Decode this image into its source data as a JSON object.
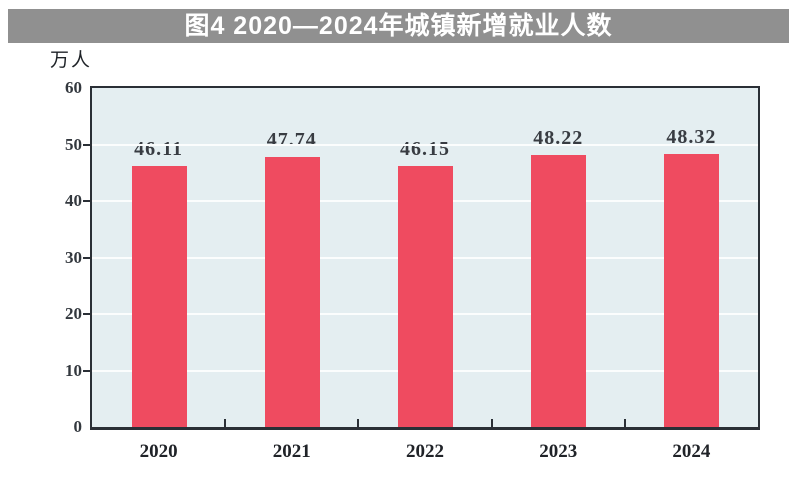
{
  "banner": {
    "title": "图4 2020—2024年城镇新增就业人数"
  },
  "chart_data": {
    "type": "bar",
    "title": "图4 2020—2024年城镇新增就业人数",
    "unit_label": "万人",
    "categories": [
      "2020",
      "2021",
      "2022",
      "2023",
      "2024"
    ],
    "values": [
      46.11,
      47.74,
      46.15,
      48.22,
      48.32
    ],
    "value_labels": [
      "46.11",
      "47.74",
      "46.15",
      "48.22",
      "48.32"
    ],
    "xlabel": "",
    "ylabel": "万人",
    "ylim": [
      0,
      60
    ],
    "yticks": [
      0,
      10,
      20,
      30,
      40,
      50,
      60
    ],
    "grid": "horizontal white gridlines at each y tick",
    "legend": "none",
    "colors": {
      "bar": "#ef4b60",
      "plot_bg": "#e4eef1",
      "axis": "#2a2f36",
      "gridline": "#fbfdfd",
      "banner_bg": "#909090",
      "banner_text": "#ffffff",
      "value_label_text": "#383c42",
      "tick_label_text": "#33383e"
    }
  }
}
